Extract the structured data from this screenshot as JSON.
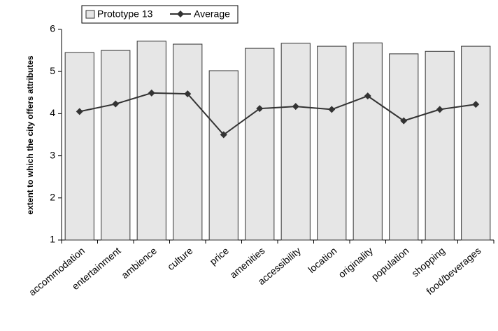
{
  "chart_data": {
    "type": "bar",
    "y_label": "extent to which the city offers attributes",
    "categories": [
      "accommodation",
      "entertainment",
      "ambience",
      "culture",
      "price",
      "amenities",
      "accessibility",
      "location",
      "originality",
      "population",
      "shopping",
      "food/beverages"
    ],
    "series": [
      {
        "name": "Prototype 13",
        "type": "bar",
        "color": "#e6e6e6",
        "values": [
          5.45,
          5.5,
          5.72,
          5.65,
          5.02,
          5.55,
          5.67,
          5.6,
          5.68,
          5.42,
          5.48,
          5.6
        ]
      },
      {
        "name": "Average",
        "type": "line",
        "color": "#333333",
        "values": [
          4.05,
          4.23,
          4.49,
          4.47,
          3.5,
          4.12,
          4.17,
          4.1,
          4.42,
          3.83,
          4.1,
          4.22
        ]
      }
    ],
    "ylim": [
      1,
      6
    ],
    "yticks": [
      1,
      2,
      3,
      4,
      5,
      6
    ],
    "grid": false
  }
}
